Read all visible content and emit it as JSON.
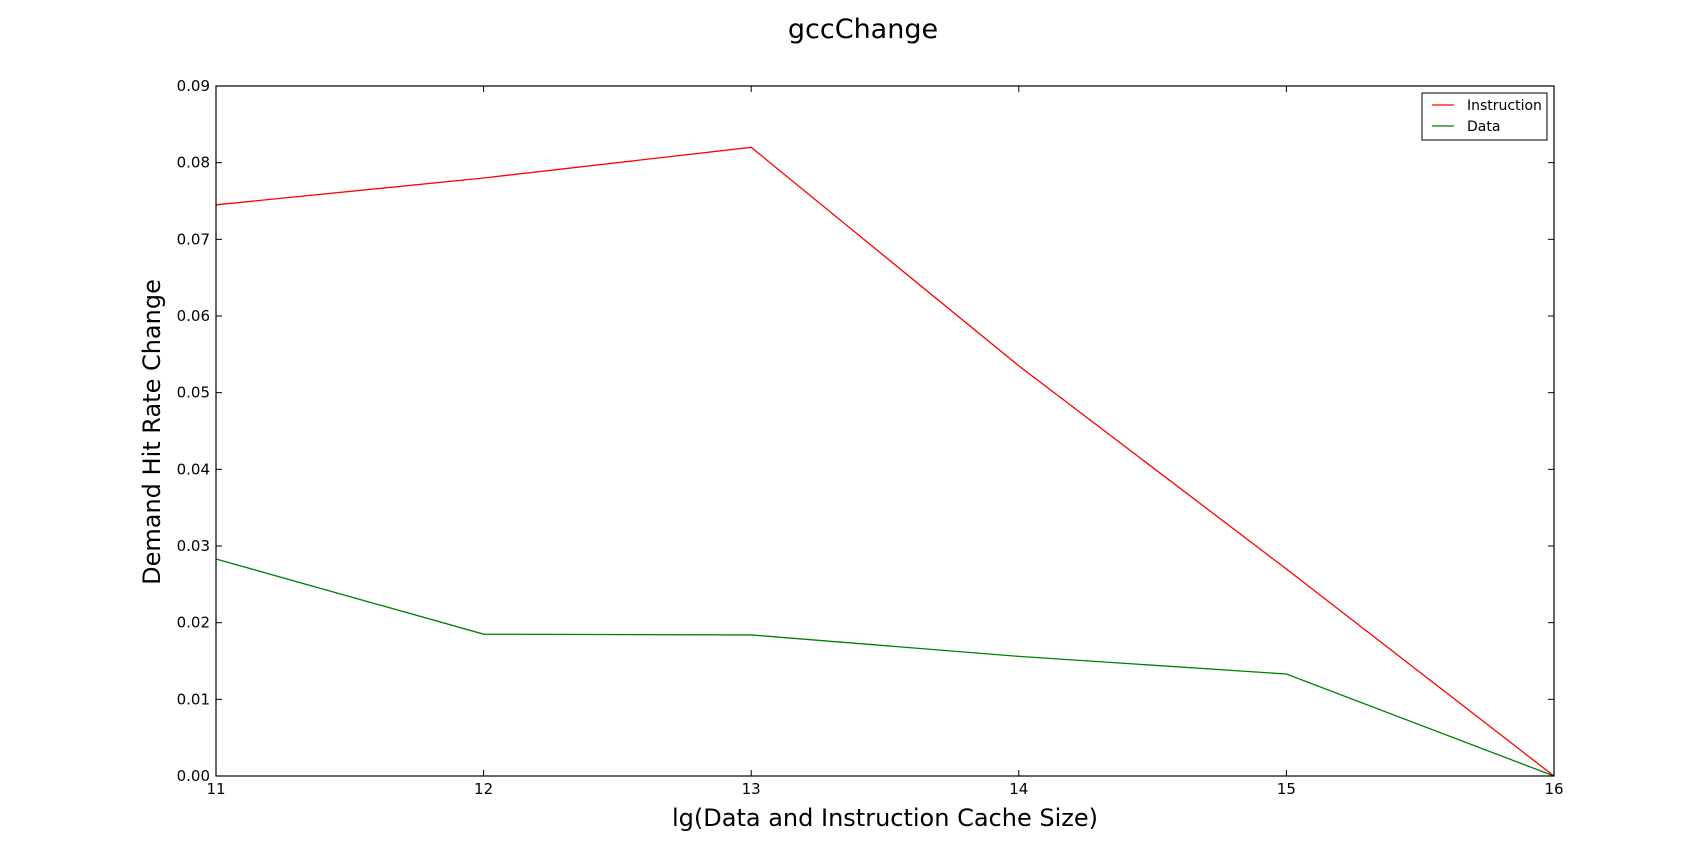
{
  "chart_data": {
    "type": "line",
    "title": "gccChange",
    "xlabel": "lg(Data and Instruction Cache Size)",
    "ylabel": "Demand Hit Rate Change",
    "x": [
      11,
      12,
      13,
      14,
      15,
      16
    ],
    "xlim": [
      11,
      16
    ],
    "ylim": [
      0,
      0.09
    ],
    "xticks": [
      "11",
      "12",
      "13",
      "14",
      "15",
      "16"
    ],
    "yticks": [
      "0.00",
      "0.01",
      "0.02",
      "0.03",
      "0.04",
      "0.05",
      "0.06",
      "0.07",
      "0.08",
      "0.09"
    ],
    "grid": false,
    "legend_position": "top-right",
    "series": [
      {
        "name": "Instruction",
        "color": "#ff0000",
        "values": [
          0.0745,
          0.078,
          0.082,
          0.0535,
          0.027,
          0.0
        ]
      },
      {
        "name": "Data",
        "color": "#008000",
        "values": [
          0.0283,
          0.0185,
          0.0184,
          0.0156,
          0.0133,
          0.0
        ]
      }
    ]
  }
}
